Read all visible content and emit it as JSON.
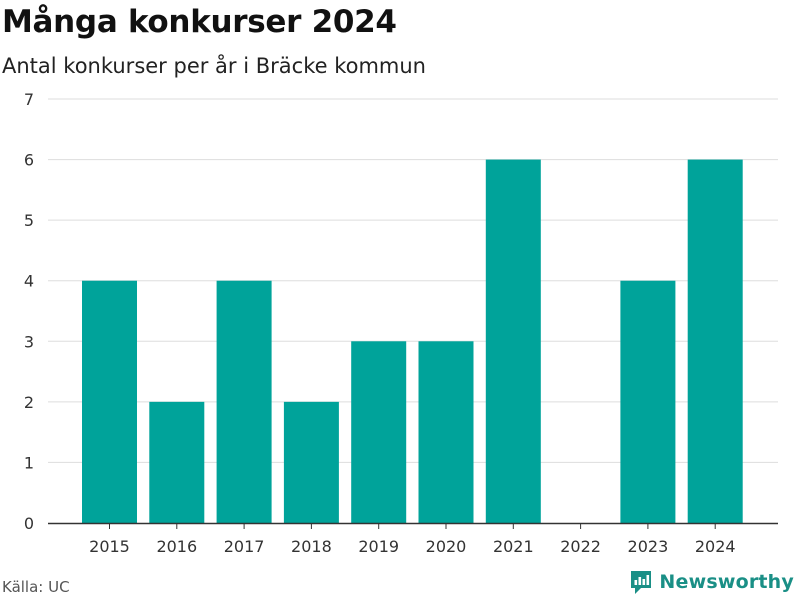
{
  "chart_data": {
    "type": "bar",
    "title": "Många konkurser 2024",
    "subtitle": "Antal konkurser per år i Bräcke kommun",
    "xlabel": "",
    "ylabel": "",
    "categories": [
      "2015",
      "2016",
      "2017",
      "2018",
      "2019",
      "2020",
      "2021",
      "2022",
      "2023",
      "2024"
    ],
    "values": [
      4,
      2,
      4,
      2,
      3,
      3,
      6,
      0,
      4,
      6
    ],
    "ylim": [
      0,
      7
    ],
    "yticks": [
      "0",
      "1",
      "2",
      "3",
      "4",
      "5",
      "6",
      "7"
    ],
    "grid": true,
    "legend": "none",
    "bar_color": "#00a39a",
    "source": "Källa: UC"
  },
  "brand": {
    "name": "Newsworthy",
    "icon": "newsworthy-logo-icon",
    "color": "#1a8f86"
  }
}
